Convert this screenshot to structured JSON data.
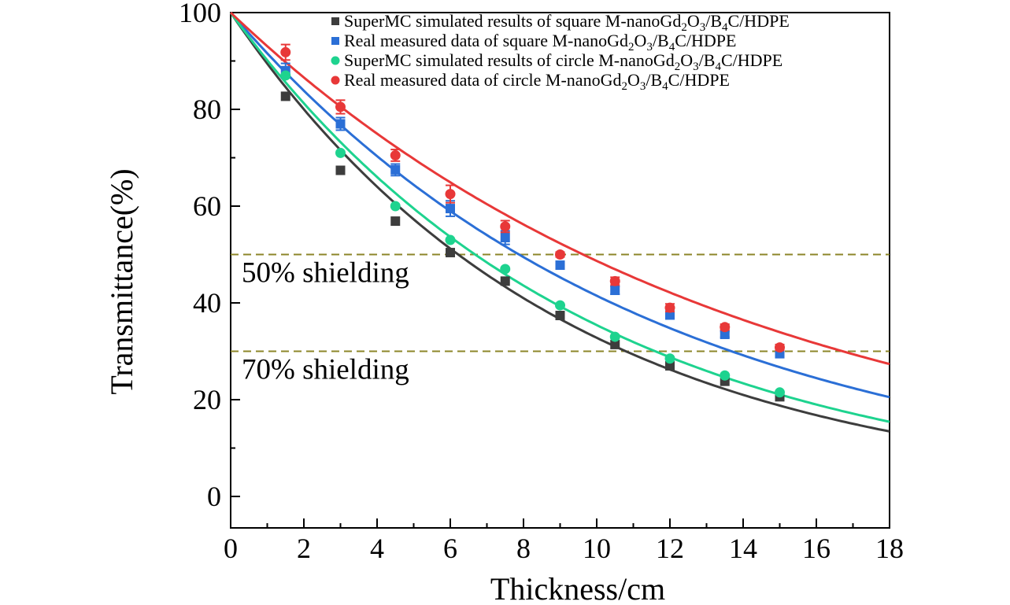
{
  "chart_data": {
    "type": "scatter",
    "xlabel": "Thickness/cm",
    "ylabel": "Transmittance(%)",
    "xlim": [
      0,
      18
    ],
    "ylim": [
      -6.5,
      100
    ],
    "x_ticks": [
      0,
      2,
      4,
      6,
      8,
      10,
      12,
      14,
      16,
      18
    ],
    "y_ticks": [
      0,
      20,
      40,
      60,
      80,
      100
    ],
    "x_tick_labels": [
      "0",
      "2",
      "4",
      "6",
      "8",
      "10",
      "12",
      "14",
      "16",
      "18"
    ],
    "y_tick_labels": [
      "0",
      "20",
      "40",
      "60",
      "80",
      "100"
    ],
    "grid": false,
    "legend_position": "top-right",
    "series": [
      {
        "name": "SuperMC simulated results of square M-nanoGd2O3/B4C/HDPE",
        "legend": {
          "pre": "SuperMC simulated results of square M-nanoGd",
          "s1": "2",
          "mid": "O",
          "s2": "3",
          "mid2": "/B",
          "s3": "4",
          "post": "C/HDPE"
        },
        "marker": "square",
        "color": "#3d3d3d",
        "x": [
          1.5,
          3.0,
          4.5,
          6.0,
          7.5,
          9.0,
          10.5,
          12.0,
          13.5,
          15.0
        ],
        "y": [
          82.7,
          67.4,
          56.9,
          50.4,
          44.5,
          37.4,
          31.4,
          27.0,
          23.8,
          20.6
        ],
        "error": [
          0,
          0,
          0,
          0,
          0,
          0,
          0,
          0,
          0,
          0
        ],
        "fit_rate": 0.1115
      },
      {
        "name": "Real measured data of square M-nanoGd2O3/B4C/HDPE",
        "legend": {
          "pre": "Real measured data of square M-nanoGd",
          "s1": "2",
          "mid": "O",
          "s2": "3",
          "mid2": "/B",
          "s3": "4",
          "post": "C/HDPE"
        },
        "marker": "square",
        "color": "#2b6fd6",
        "x": [
          1.5,
          3.0,
          4.5,
          6.0,
          7.5,
          9.0,
          10.5,
          12.0,
          13.5,
          15.0
        ],
        "y": [
          88.0,
          77.0,
          67.5,
          59.5,
          53.5,
          47.8,
          42.6,
          37.5,
          33.5,
          29.5
        ],
        "error": [
          1.5,
          1.3,
          1.2,
          1.6,
          1.4,
          0.6,
          0.8,
          0.8,
          0.6,
          0.5
        ],
        "fit_rate": 0.088
      },
      {
        "name": "SuperMC simulated results of circle M-nanoGd2O3/B4C/HDPE",
        "legend": {
          "pre": "SuperMC simulated results of circle M-nanoGd",
          "s1": "2",
          "mid": "O",
          "s2": "3",
          "mid2": "/B",
          "s3": "4",
          "post": "C/HDPE"
        },
        "marker": "circle",
        "color": "#1ed38f",
        "x": [
          1.5,
          3.0,
          4.5,
          6.0,
          7.5,
          9.0,
          10.5,
          12.0,
          13.5,
          15.0
        ],
        "y": [
          87.0,
          71.0,
          60.0,
          53.0,
          47.0,
          39.5,
          33.0,
          28.5,
          25.0,
          21.5
        ],
        "error": [
          0,
          0,
          0,
          0,
          0,
          0,
          0,
          0,
          0,
          0
        ],
        "fit_rate": 0.1038
      },
      {
        "name": "Real measured data of circle M-nanoGd2O3/B4C/HDPE",
        "legend": {
          "pre": "Real measured data of circle M-nanoGd",
          "s1": "2",
          "mid": "O",
          "s2": "3",
          "mid2": "/B",
          "s3": "4",
          "post": "C/HDPE"
        },
        "marker": "circle",
        "color": "#e83838",
        "x": [
          1.5,
          3.0,
          4.5,
          6.0,
          7.5,
          9.0,
          10.5,
          12.0,
          13.5,
          15.0
        ],
        "y": [
          91.8,
          80.5,
          70.5,
          62.5,
          55.8,
          50.0,
          44.5,
          39.0,
          35.0,
          30.8
        ],
        "error": [
          1.6,
          1.4,
          1.2,
          1.8,
          1.2,
          0.5,
          0.8,
          0.8,
          0.6,
          0.6
        ],
        "fit_rate": 0.072
      }
    ],
    "reference_lines": [
      {
        "y": 50,
        "label": "50% shielding",
        "color": "#8c8628",
        "style": "dashed"
      },
      {
        "y": 30,
        "label": "70% shielding",
        "color": "#8c8628",
        "style": "dashed"
      }
    ]
  }
}
